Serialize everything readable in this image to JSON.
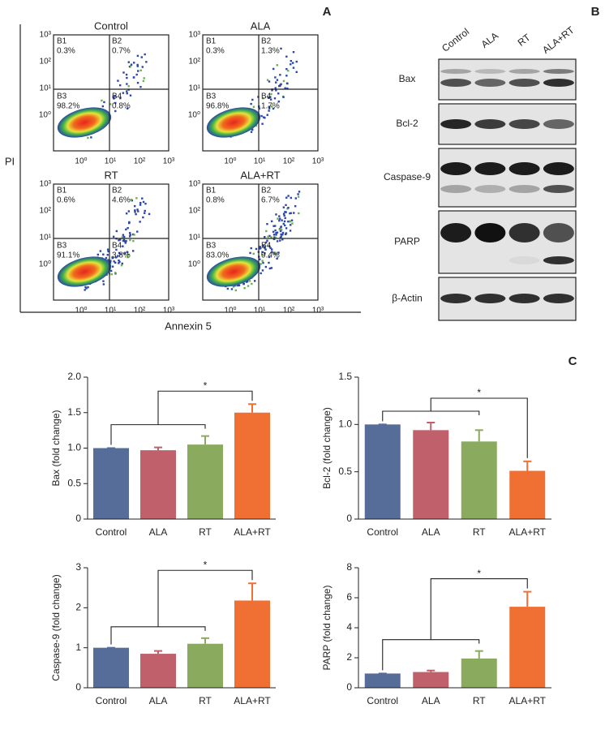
{
  "panel_labels": [
    "A",
    "B",
    "C"
  ],
  "flow_cytometry": {
    "y_label": "PI",
    "x_label": "Annexin 5",
    "tick_labels": [
      "10⁰",
      "10¹",
      "10²",
      "10³"
    ],
    "plots": [
      {
        "title": "Control",
        "quadrants": [
          {
            "name": "B1",
            "percent": "0.3%"
          },
          {
            "name": "B2",
            "percent": "0.7%"
          },
          {
            "name": "B3",
            "percent": "98.2%"
          },
          {
            "name": "B4",
            "percent": "0.8%"
          }
        ]
      },
      {
        "title": "ALA",
        "quadrants": [
          {
            "name": "B1",
            "percent": "0.3%"
          },
          {
            "name": "B2",
            "percent": "1.3%"
          },
          {
            "name": "B3",
            "percent": "96.8%"
          },
          {
            "name": "B4",
            "percent": "1.7%"
          }
        ]
      },
      {
        "title": "RT",
        "quadrants": [
          {
            "name": "B1",
            "percent": "0.6%"
          },
          {
            "name": "B2",
            "percent": "4.6%"
          },
          {
            "name": "B3",
            "percent": "91.1%"
          },
          {
            "name": "B4",
            "percent": "3.8%"
          }
        ]
      },
      {
        "title": "ALA+RT",
        "quadrants": [
          {
            "name": "B1",
            "percent": "0.8%"
          },
          {
            "name": "B2",
            "percent": "6.7%"
          },
          {
            "name": "B3",
            "percent": "83.0%"
          },
          {
            "name": "B4",
            "percent": "9.4%"
          }
        ]
      }
    ]
  },
  "western_blot": {
    "lanes": [
      "Control",
      "ALA",
      "RT",
      "ALA+RT"
    ],
    "proteins": [
      "Bax",
      "Bcl-2",
      "Caspase-9",
      "PARP",
      "β-Actin"
    ]
  },
  "chart_data": [
    {
      "type": "bar",
      "y_label": "Bax (fold change)",
      "categories": [
        "Control",
        "ALA",
        "RT",
        "ALA+RT"
      ],
      "values": [
        1.0,
        0.97,
        1.05,
        1.5
      ],
      "errors": [
        0,
        0.04,
        0.12,
        0.12
      ],
      "colors": [
        "#566c99",
        "#c0606a",
        "#8aab5d",
        "#f07033"
      ],
      "ylim": [
        0,
        2
      ],
      "yticks": [
        0,
        0.5,
        {
          "value": 1,
          "label": "1.0"
        },
        1.5,
        {
          "value": 2,
          "label": "2.0"
        }
      ],
      "annotation": "*"
    },
    {
      "type": "bar",
      "y_label": "Bcl-2 (fold change)",
      "categories": [
        "Control",
        "ALA",
        "RT",
        "ALA+RT"
      ],
      "values": [
        1.0,
        0.94,
        0.82,
        0.51
      ],
      "errors": [
        0,
        0.08,
        0.12,
        0.1
      ],
      "colors": [
        "#566c99",
        "#c0606a",
        "#8aab5d",
        "#f07033"
      ],
      "ylim": [
        0,
        1.5
      ],
      "yticks": [
        0,
        0.5,
        {
          "value": 1,
          "label": "1.0"
        },
        1.5
      ],
      "annotation": "*"
    },
    {
      "type": "bar",
      "y_label": "Caspase-9 (fold change)",
      "categories": [
        "Control",
        "ALA",
        "RT",
        "ALA+RT"
      ],
      "values": [
        1.0,
        0.85,
        1.1,
        2.18
      ],
      "errors": [
        0,
        0.07,
        0.14,
        0.43
      ],
      "colors": [
        "#566c99",
        "#c0606a",
        "#8aab5d",
        "#f07033"
      ],
      "ylim": [
        0,
        3
      ],
      "yticks": [
        0,
        1,
        2,
        3
      ],
      "annotation": "*"
    },
    {
      "type": "bar",
      "y_label": "PARP (fold change)",
      "categories": [
        "Control",
        "ALA",
        "RT",
        "ALA+RT"
      ],
      "values": [
        0.95,
        1.05,
        1.95,
        5.4
      ],
      "errors": [
        0,
        0.1,
        0.5,
        1.0
      ],
      "colors": [
        "#566c99",
        "#c0606a",
        "#8aab5d",
        "#f07033"
      ],
      "ylim": [
        0,
        8
      ],
      "yticks": [
        0,
        2,
        4,
        6,
        8
      ],
      "annotation": "*"
    }
  ]
}
